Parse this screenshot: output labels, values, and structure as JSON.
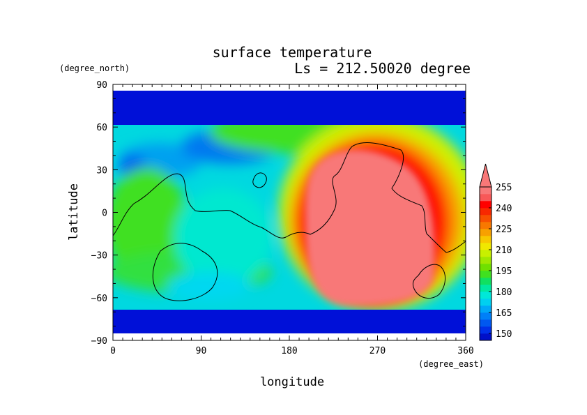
{
  "chart_data": {
    "type": "heatmap",
    "title": "surface temperature",
    "subtitle": "Ls = 212.50020 degree",
    "xlabel": "longitude",
    "ylabel": "latitude",
    "x_units": "(degree_east)",
    "y_units": "(degree_north)",
    "xlim": [
      0,
      360
    ],
    "ylim": [
      -90,
      90
    ],
    "x_ticks": [
      0,
      90,
      180,
      270,
      360
    ],
    "y_ticks": [
      90,
      60,
      30,
      0,
      -30,
      -60,
      -90
    ],
    "colorbar": {
      "levels": [
        145,
        150,
        155,
        160,
        165,
        170,
        175,
        180,
        185,
        190,
        195,
        200,
        205,
        210,
        215,
        220,
        225,
        230,
        235,
        240,
        245,
        250,
        255,
        260
      ],
      "labels": [
        "150",
        "165",
        "180",
        "195",
        "210",
        "225",
        "240",
        "255"
      ],
      "colors": [
        "#0010c8",
        "#0030e8",
        "#0058f0",
        "#0080f8",
        "#00a8f8",
        "#00d0f0",
        "#00e8d8",
        "#00e8a0",
        "#10e060",
        "#40e020",
        "#70e000",
        "#a0e800",
        "#c8f000",
        "#f0e800",
        "#f8c800",
        "#f8a000",
        "#f87800",
        "#f85000",
        "#f82800",
        "#ff0000",
        "#f85858",
        "#f87878"
      ],
      "extend": "max"
    },
    "field_description_values": {
      "polar_caps_temperature": 148,
      "southern_highlands_warm_region_max": 258,
      "northern_lowlands_typical": 180
    }
  }
}
